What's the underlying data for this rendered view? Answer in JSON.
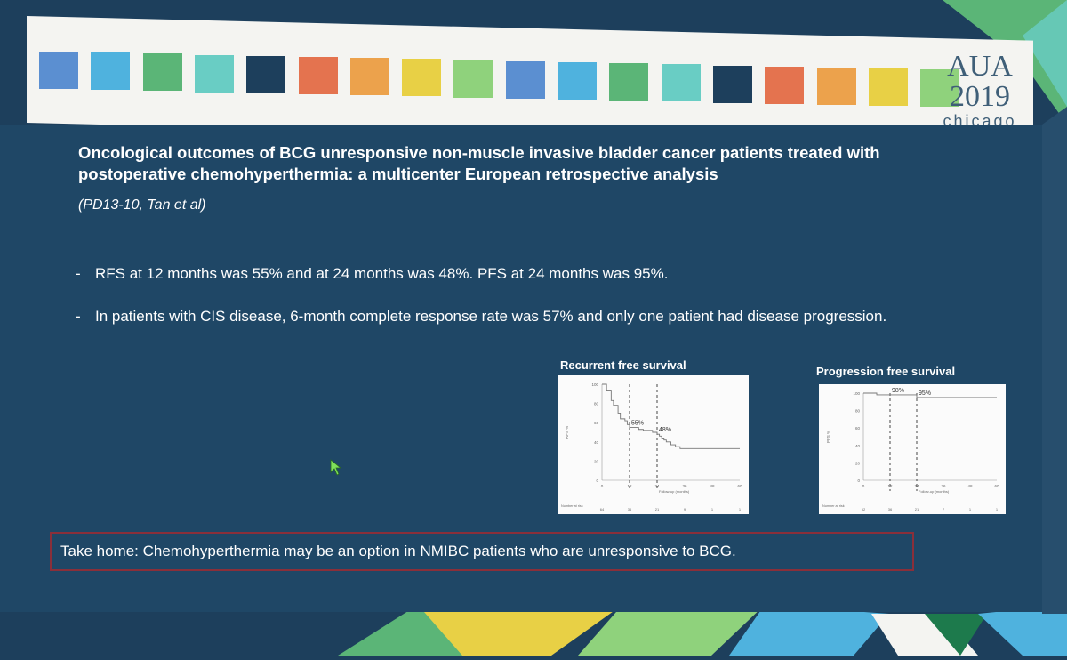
{
  "theme": {
    "background": "#1d3f5c",
    "panel": "#1f4766",
    "header_band": "#f4f4f1",
    "takehome_border": "#8a2f3a"
  },
  "header": {
    "squares": [
      "#5b8fd1",
      "#4fb2de",
      "#5bb577",
      "#69cdc4",
      "#1d3f5c",
      "#e4734f",
      "#eca24c",
      "#e8d045",
      "#8fd27c",
      "#5b8fd1",
      "#4fb2de",
      "#5bb577",
      "#69cdc4",
      "#1d3f5c",
      "#e4734f",
      "#eca24c",
      "#e8d045",
      "#8fd27c"
    ],
    "logo": {
      "line1": "AUA",
      "line2": "2019",
      "line3": "chicago"
    }
  },
  "slide": {
    "title": "Oncological outcomes of BCG unresponsive non-muscle invasive bladder cancer patients treated with postoperative chemohyperthermia: a multicenter European retrospective analysis",
    "citation": "(PD13-10, Tan et al)",
    "bullets": [
      "RFS at 12 months was 55% and at 24 months was 48%. PFS at 24 months was 95%.",
      "In patients with CIS disease, 6-month complete response rate was 57% and only one patient had disease progression."
    ],
    "bullet_marker": "-",
    "takehome": "Take home: Chemohyperthermia may be an option in NMIBC patients who are unresponsive to BCG."
  },
  "chart_data": [
    {
      "type": "line",
      "title": "Recurrent free survival",
      "xlabel": "Follow-up (months)",
      "ylabel": "RFS %",
      "ylim": [
        0,
        100
      ],
      "xlim": [
        0,
        60
      ],
      "yticks": [
        "0",
        "20",
        "40",
        "60",
        "80",
        "100"
      ],
      "xticks": [
        "0",
        "12",
        "24",
        "36",
        "48",
        "60"
      ],
      "series": [
        {
          "x": [
            0,
            2,
            4,
            5,
            7,
            8,
            10,
            11,
            12,
            14,
            16,
            18,
            20,
            22,
            24,
            25,
            26,
            27,
            28,
            30,
            32,
            34,
            60
          ],
          "y": [
            100,
            93,
            83,
            78,
            70,
            64,
            62,
            58,
            55,
            55,
            53,
            52,
            52,
            50,
            48,
            46,
            44,
            42,
            40,
            37,
            35,
            33,
            33
          ]
        }
      ],
      "annotations": [
        "55%",
        "48%"
      ],
      "markers_x": [
        12,
        24
      ],
      "risk_label": "Number at risk",
      "risk_values": [
        "64",
        "36",
        "21",
        "9",
        "1",
        "1"
      ],
      "stroke": "#777777"
    },
    {
      "type": "line",
      "title": "Progression free survival",
      "xlabel": "Follow-up (months)",
      "ylabel": "PFS %",
      "ylim": [
        0,
        100
      ],
      "xlim": [
        0,
        60
      ],
      "yticks": [
        "0",
        "20",
        "40",
        "60",
        "80",
        "100"
      ],
      "xticks": [
        "0",
        "12",
        "24",
        "36",
        "48",
        "60"
      ],
      "series": [
        {
          "x": [
            0,
            5,
            6,
            12,
            24,
            60
          ],
          "y": [
            100,
            100,
            98,
            98,
            95,
            95
          ]
        }
      ],
      "annotations": [
        "98%",
        "95%"
      ],
      "markers_x": [
        12,
        24
      ],
      "risk_label": "Number at risk",
      "risk_values": [
        "52",
        "36",
        "21",
        "7",
        "1",
        "1"
      ],
      "stroke": "#777777"
    }
  ]
}
